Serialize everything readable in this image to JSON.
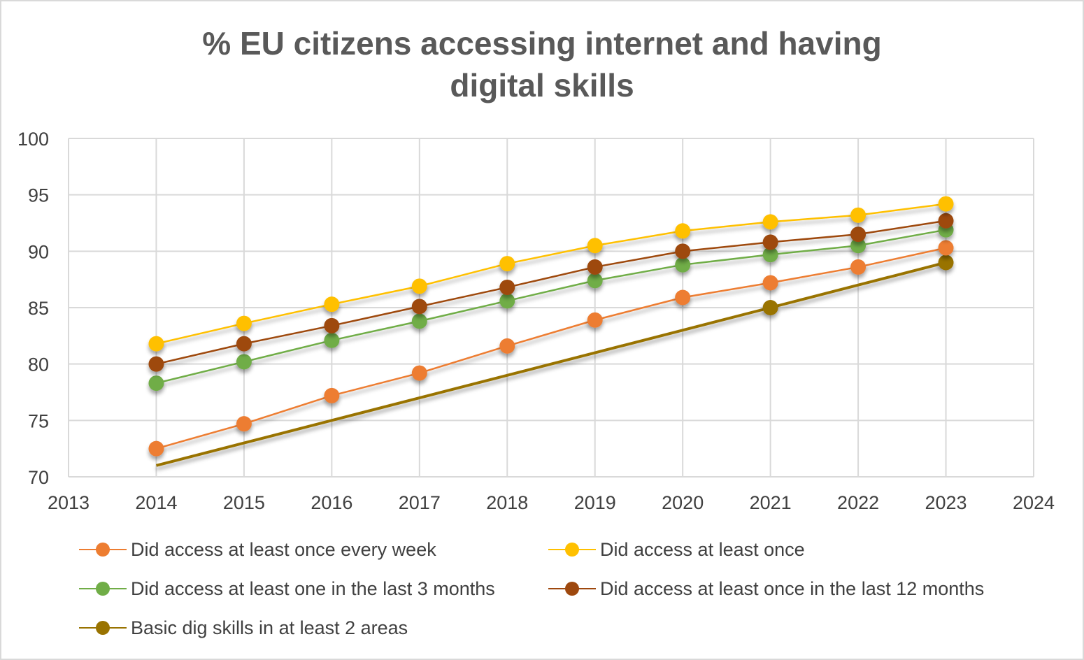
{
  "chart_data": {
    "type": "line",
    "title_lines": [
      "% EU citizens accessing internet and having",
      "digital skills"
    ],
    "xlabel": "",
    "ylabel": "",
    "xlim": [
      2013,
      2024
    ],
    "ylim": [
      70,
      100
    ],
    "x_ticks": [
      2013,
      2014,
      2015,
      2016,
      2017,
      2018,
      2019,
      2020,
      2021,
      2022,
      2023,
      2024
    ],
    "y_ticks": [
      70,
      75,
      80,
      85,
      90,
      95,
      100
    ],
    "grid": true,
    "legend_position": "bottom",
    "series": [
      {
        "name": "Did access at least once every week",
        "color": "#ED7D31",
        "marker": "circle",
        "points": [
          [
            2014,
            72.5
          ],
          [
            2015,
            74.7
          ],
          [
            2016,
            77.2
          ],
          [
            2017,
            79.2
          ],
          [
            2018,
            81.6
          ],
          [
            2019,
            83.9
          ],
          [
            2020,
            85.9
          ],
          [
            2021,
            87.2
          ],
          [
            2022,
            88.6
          ],
          [
            2023,
            90.3
          ]
        ]
      },
      {
        "name": "Did access at least once",
        "color": "#FFC000",
        "marker": "circle",
        "points": [
          [
            2014,
            81.8
          ],
          [
            2015,
            83.6
          ],
          [
            2016,
            85.3
          ],
          [
            2017,
            86.9
          ],
          [
            2018,
            88.9
          ],
          [
            2019,
            90.5
          ],
          [
            2020,
            91.8
          ],
          [
            2021,
            92.6
          ],
          [
            2022,
            93.2
          ],
          [
            2023,
            94.2
          ]
        ]
      },
      {
        "name": "Did access at least one in the last 3 months",
        "color": "#70AD47",
        "marker": "circle",
        "points": [
          [
            2014,
            78.3
          ],
          [
            2015,
            80.2
          ],
          [
            2016,
            82.1
          ],
          [
            2017,
            83.8
          ],
          [
            2018,
            85.6
          ],
          [
            2019,
            87.4
          ],
          [
            2020,
            88.8
          ],
          [
            2021,
            89.7
          ],
          [
            2022,
            90.5
          ],
          [
            2023,
            91.9
          ]
        ]
      },
      {
        "name": "Did access at least once in the last 12 months",
        "color": "#9E480E",
        "marker": "circle",
        "points": [
          [
            2014,
            80.0
          ],
          [
            2015,
            81.8
          ],
          [
            2016,
            83.4
          ],
          [
            2017,
            85.1
          ],
          [
            2018,
            86.8
          ],
          [
            2019,
            88.6
          ],
          [
            2020,
            90.0
          ],
          [
            2021,
            90.8
          ],
          [
            2022,
            91.5
          ],
          [
            2023,
            92.7
          ]
        ]
      },
      {
        "name": "Basic dig skills in at least 2 areas",
        "color": "#997300",
        "marker": "circle",
        "marker_points": [
          [
            2021,
            85.0
          ],
          [
            2023,
            89.0
          ]
        ],
        "points": [
          [
            2014,
            71.0
          ],
          [
            2015,
            73.0
          ],
          [
            2016,
            75.0
          ],
          [
            2017,
            77.0
          ],
          [
            2018,
            79.0
          ],
          [
            2019,
            81.0
          ],
          [
            2020,
            83.0
          ],
          [
            2021,
            85.0
          ],
          [
            2022,
            87.0
          ],
          [
            2023,
            89.0
          ]
        ]
      }
    ]
  }
}
